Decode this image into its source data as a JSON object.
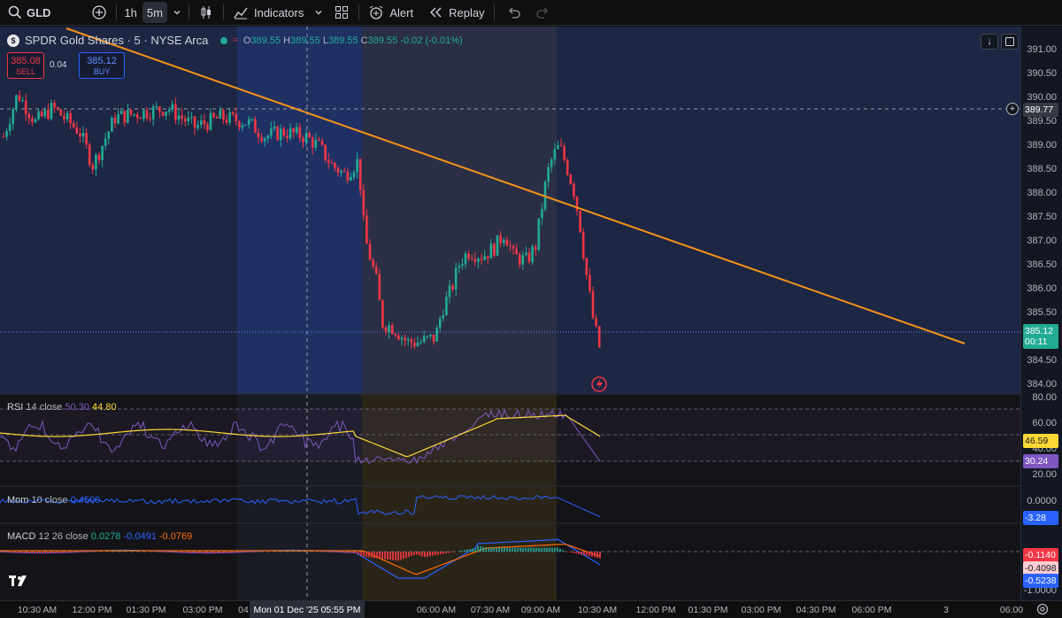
{
  "toolbar": {
    "symbol": "GLD",
    "interval_1h": "1h",
    "interval_5m": "5m",
    "indicators": "Indicators",
    "alert": "Alert",
    "replay": "Replay"
  },
  "legend": {
    "title": "SPDR Gold Shares · 5 · NYSE Arca",
    "logo_letter": "$",
    "open_label": "O",
    "open": "389.55",
    "high_label": "H",
    "high": "389.55",
    "low_label": "L",
    "low": "389.55",
    "close_label": "C",
    "close": "389.55",
    "change": "-0.02 (-0.01%)"
  },
  "trade": {
    "sell_price": "385.08",
    "sell_label": "SELL",
    "spread": "0.04",
    "buy_price": "385.12",
    "buy_label": "BUY"
  },
  "price_scale": {
    "labels": [
      "391.00",
      "390.50",
      "390.00",
      "389.50",
      "389.00",
      "388.50",
      "388.00",
      "387.50",
      "387.00",
      "386.50",
      "386.00",
      "385.50",
      "384.50",
      "384.00"
    ],
    "crosshair_price": "389.77",
    "last_price": "385.12",
    "countdown": "00:11"
  },
  "rsi": {
    "name": "RSI",
    "params": "14 close",
    "value1": "50.30",
    "value2": "44.80",
    "scale": [
      "80.00",
      "60.00",
      "40.00",
      "20.00"
    ],
    "tag_ma": "46.59",
    "tag_rsi": "30.24"
  },
  "mom": {
    "name": "Mom",
    "params": "10 close",
    "value": "0.4500",
    "scale": [
      "0.0000"
    ],
    "tag": "-3.28"
  },
  "macd": {
    "name": "MACD",
    "params": "12 26 close",
    "hist": "0.0278",
    "macd": "-0.0491",
    "signal": "-0.0769",
    "tags": [
      "-0.1140",
      "-0.4098",
      "-0.5238"
    ],
    "scale_bottom": "-1.0000"
  },
  "time_axis": {
    "labels": [
      "10:30 AM",
      "12:00 PM",
      "01:30 PM",
      "03:00 PM",
      "04",
      "06:00 AM",
      "07:30 AM",
      "09:00 AM",
      "10:30 AM",
      "12:00 PM",
      "01:30 PM",
      "03:00 PM",
      "04:30 PM",
      "06:00 PM",
      "3",
      "06:00"
    ],
    "cursor": "Mon 01 Dec '25   05:55 PM"
  },
  "colors": {
    "up": "#22ab94",
    "down": "#f23645",
    "trend": "#f7931a",
    "rsi": "#7e57c2",
    "rsi_ma": "#fdd835",
    "mom": "#2962ff",
    "macd": "#2962ff",
    "signal": "#ff6d00"
  }
}
